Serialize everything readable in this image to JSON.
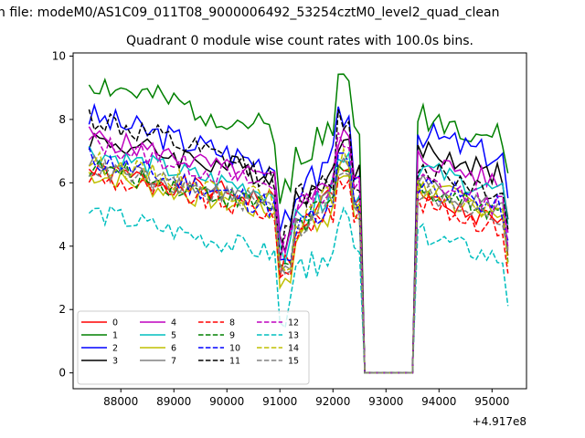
{
  "chart_data": {
    "type": "line",
    "suptitle": "n file: modeM0/AS1C09_011T08_9000006492_53254cztM0_level2_quad_clean",
    "title": "Quadrant 0 module wise count rates with 100.0s bins.",
    "xlabel": "",
    "ylabel": "",
    "x_offset_label": "+4.917e8",
    "xlim": [
      87100,
      95650
    ],
    "ylim": [
      -0.5,
      10.1
    ],
    "xticks": [
      "88000",
      "89000",
      "90000",
      "91000",
      "92000",
      "93000",
      "94000",
      "95000"
    ],
    "yticks": [
      "0",
      "2",
      "4",
      "6",
      "8",
      "10"
    ],
    "legend_position": "lower-left",
    "gap_start": 92550,
    "gap_end": 93550,
    "x_start": 87400,
    "x_end": 95300,
    "bin": 100,
    "series": [
      {
        "name": "0",
        "color": "#ff0000",
        "dash": "solid",
        "base": 6.4,
        "slope": -1.0,
        "amp": 0.35,
        "seed": 1,
        "post": 5.5
      },
      {
        "name": "1",
        "color": "#008000",
        "dash": "solid",
        "base": 9.2,
        "slope": -1.6,
        "amp": 0.45,
        "seed": 2,
        "post": 8.2
      },
      {
        "name": "2",
        "color": "#0000ff",
        "dash": "solid",
        "base": 8.1,
        "slope": -1.6,
        "amp": 0.45,
        "seed": 3,
        "post": 7.6
      },
      {
        "name": "3",
        "color": "#000000",
        "dash": "solid",
        "base": 7.4,
        "slope": -1.2,
        "amp": 0.4,
        "seed": 4,
        "post": 7.1
      },
      {
        "name": "4",
        "color": "#bf00bf",
        "dash": "solid",
        "base": 7.5,
        "slope": -1.5,
        "amp": 0.35,
        "seed": 5,
        "post": 6.8
      },
      {
        "name": "5",
        "color": "#00bfbf",
        "dash": "solid",
        "base": 7.0,
        "slope": -1.4,
        "amp": 0.35,
        "seed": 6,
        "post": 6.5
      },
      {
        "name": "6",
        "color": "#bfbf00",
        "dash": "solid",
        "base": 6.3,
        "slope": -1.3,
        "amp": 0.35,
        "seed": 7,
        "post": 5.9
      },
      {
        "name": "7",
        "color": "#808080",
        "dash": "solid",
        "base": 6.6,
        "slope": -1.3,
        "amp": 0.35,
        "seed": 8,
        "post": 6.0
      },
      {
        "name": "8",
        "color": "#ff0000",
        "dash": "dashed",
        "base": 6.2,
        "slope": -1.2,
        "amp": 0.35,
        "seed": 9,
        "post": 5.4
      },
      {
        "name": "9",
        "color": "#008000",
        "dash": "dashed",
        "base": 6.5,
        "slope": -1.3,
        "amp": 0.35,
        "seed": 10,
        "post": 5.9
      },
      {
        "name": "10",
        "color": "#0000ff",
        "dash": "dashed",
        "base": 6.8,
        "slope": -1.6,
        "amp": 0.4,
        "seed": 11,
        "post": 6.0
      },
      {
        "name": "11",
        "color": "#000000",
        "dash": "dashed",
        "base": 8.1,
        "slope": -2.0,
        "amp": 0.45,
        "seed": 12,
        "post": 6.5
      },
      {
        "name": "12",
        "color": "#bf00bf",
        "dash": "dashed",
        "base": 7.3,
        "slope": -1.5,
        "amp": 0.35,
        "seed": 13,
        "post": 6.1
      },
      {
        "name": "13",
        "color": "#00bfbf",
        "dash": "dashed",
        "base": 5.1,
        "slope": -1.4,
        "amp": 0.35,
        "seed": 14,
        "post": 4.4
      },
      {
        "name": "14",
        "color": "#bfbf00",
        "dash": "dashed",
        "base": 6.7,
        "slope": -1.3,
        "amp": 0.35,
        "seed": 15,
        "post": 5.8
      },
      {
        "name": "15",
        "color": "#808080",
        "dash": "dashed",
        "base": 6.5,
        "slope": -1.3,
        "amp": 0.35,
        "seed": 16,
        "post": 5.7
      }
    ]
  }
}
